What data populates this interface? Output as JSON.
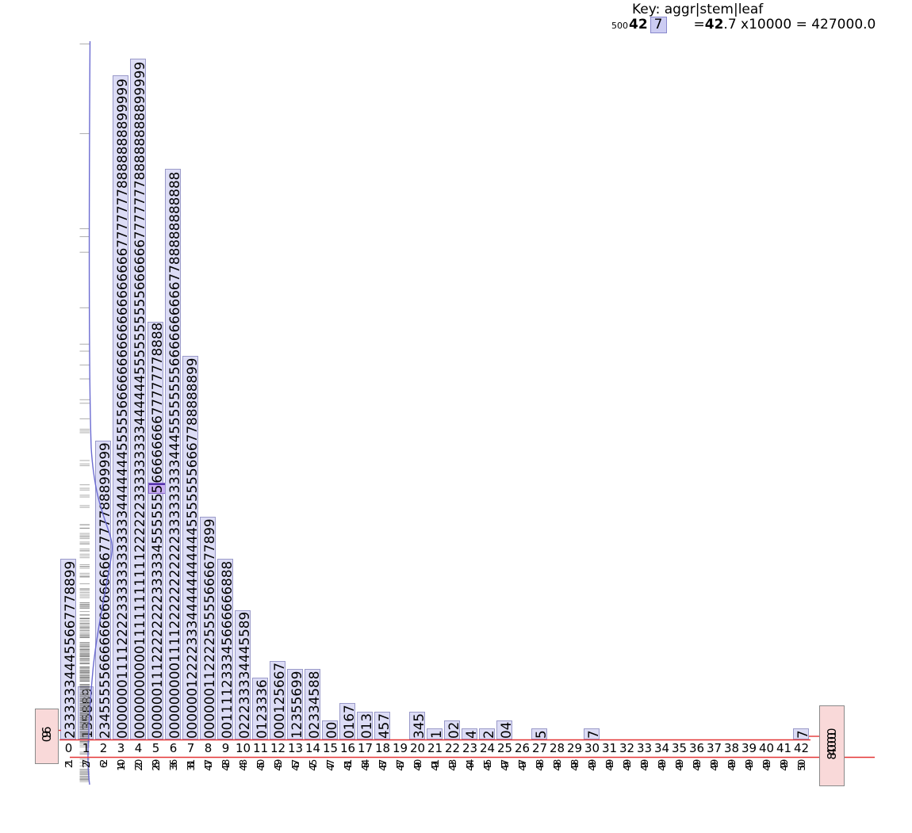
{
  "key": {
    "title": "Key: aggr|stem|leaf",
    "aggr": "500",
    "stem": "42",
    "leaf": "7",
    "eq": "=",
    "stem2": "42",
    "rest": ".7 x10000 = 427000.0"
  },
  "axis": {
    "min_label": "0.96",
    "max_label": "840000.0"
  },
  "chart_data": {
    "type": "stem-leaf-histogram",
    "x_axis_stems": [
      "0",
      "1",
      "2",
      "3",
      "4",
      "5",
      "6",
      "7",
      "8",
      "9",
      "10",
      "11",
      "12",
      "13",
      "14",
      "15",
      "16",
      "17",
      "18",
      "19",
      "20",
      "21",
      "22",
      "23",
      "24",
      "25",
      "26",
      "27",
      "28",
      "29",
      "30",
      "31",
      "32",
      "33",
      "34",
      "35",
      "36",
      "37",
      "38",
      "39",
      "40",
      "41",
      "42"
    ],
    "multiplier_text": "x10000",
    "total_count": 500,
    "stems": [
      {
        "stem": "0",
        "leaves": "233333344455667778899",
        "aggr": "21"
      },
      {
        "stem": "1",
        "leaves": "135889",
        "aggr": "27"
      },
      {
        "stem": "2",
        "leaves": "23455555666666666666667777788899999",
        "aggr": "62"
      },
      {
        "stem": "3",
        "leaves": "000000011112222333333333333444444455555666666666666666666677777778888888899999",
        "aggr": "140"
      },
      {
        "stem": "4",
        "leaves": "00000000000111111111112222223333333334444445555555555666666777777788888888899999",
        "aggr": "220"
      },
      {
        "stem": "5",
        "leaves": "0000001112222222233333455555556666666677777778888",
        "aggr": "269"
      },
      {
        "stem": "6",
        "leaves": "0000000001111222222222223333333334445555555566666666667788888888888",
        "aggr": "336"
      },
      {
        "stem": "7",
        "leaves": "000000122223334444444444455555556667788888899",
        "aggr": "381"
      },
      {
        "stem": "8",
        "leaves": "00000011222255555666677899",
        "aggr": "407"
      },
      {
        "stem": "9",
        "leaves": "001111233345666666888",
        "aggr": "428"
      },
      {
        "stem": "10",
        "leaves": "022233334445589",
        "aggr": "443"
      },
      {
        "stem": "11",
        "leaves": "0123336",
        "aggr": "450"
      },
      {
        "stem": "12",
        "leaves": "000125667",
        "aggr": "459"
      },
      {
        "stem": "13",
        "leaves": "12355699",
        "aggr": "467"
      },
      {
        "stem": "14",
        "leaves": "02334588",
        "aggr": "475"
      },
      {
        "stem": "15",
        "leaves": "00",
        "aggr": "477"
      },
      {
        "stem": "16",
        "leaves": "0167",
        "aggr": "481"
      },
      {
        "stem": "17",
        "leaves": "013",
        "aggr": "484"
      },
      {
        "stem": "18",
        "leaves": "457",
        "aggr": "487"
      },
      {
        "stem": "19",
        "leaves": "",
        "aggr": "487"
      },
      {
        "stem": "20",
        "leaves": "345",
        "aggr": "490"
      },
      {
        "stem": "21",
        "leaves": "1",
        "aggr": "491"
      },
      {
        "stem": "22",
        "leaves": "02",
        "aggr": "493"
      },
      {
        "stem": "23",
        "leaves": "4",
        "aggr": "494"
      },
      {
        "stem": "24",
        "leaves": "2",
        "aggr": "495"
      },
      {
        "stem": "25",
        "leaves": "04",
        "aggr": "497"
      },
      {
        "stem": "26",
        "leaves": "",
        "aggr": "497"
      },
      {
        "stem": "27",
        "leaves": "5",
        "aggr": "498"
      },
      {
        "stem": "28",
        "leaves": "",
        "aggr": "498"
      },
      {
        "stem": "29",
        "leaves": "",
        "aggr": "498"
      },
      {
        "stem": "30",
        "leaves": "7",
        "aggr": "499"
      },
      {
        "stem": "31",
        "leaves": "",
        "aggr": "499"
      },
      {
        "stem": "32",
        "leaves": "",
        "aggr": "499"
      },
      {
        "stem": "33",
        "leaves": "",
        "aggr": "499"
      },
      {
        "stem": "34",
        "leaves": "",
        "aggr": "499"
      },
      {
        "stem": "35",
        "leaves": "",
        "aggr": "499"
      },
      {
        "stem": "36",
        "leaves": "",
        "aggr": "499"
      },
      {
        "stem": "37",
        "leaves": "",
        "aggr": "499"
      },
      {
        "stem": "38",
        "leaves": "",
        "aggr": "499"
      },
      {
        "stem": "39",
        "leaves": "",
        "aggr": "499"
      },
      {
        "stem": "40",
        "leaves": "",
        "aggr": "499"
      },
      {
        "stem": "41",
        "leaves": "",
        "aggr": "499"
      },
      {
        "stem": "42",
        "leaves": "7",
        "aggr": "500"
      }
    ],
    "highlight": {
      "stem": "5",
      "char_index": 29
    },
    "rug_extra_y": [
      168,
      288,
      298
    ],
    "colors": {
      "bar_fill": "#dcdcf5",
      "bar_border": "#9a9ac9",
      "highlight_fill": "#c9aef2",
      "key_box_fill": "#ccccf2",
      "pink_fill": "#f9d9d9",
      "red_line": "#e43535",
      "curve_blue": "#6b6bd1",
      "rug_gray": "#777777"
    }
  }
}
